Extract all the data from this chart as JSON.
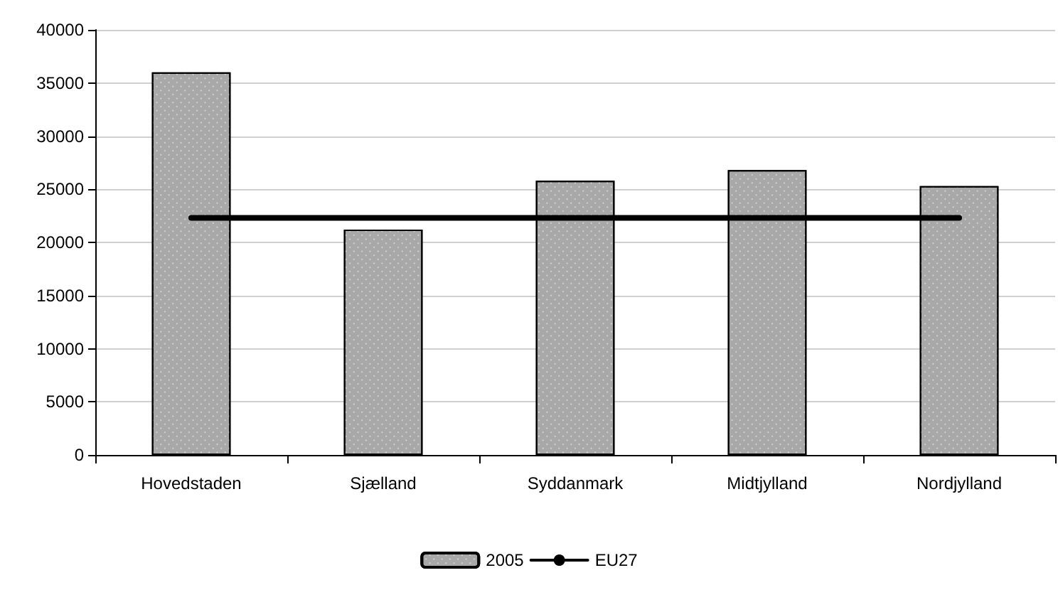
{
  "chart_data": {
    "type": "bar",
    "categories": [
      "Hovedstaden",
      "Sjælland",
      "Syddanmark",
      "Midtjylland",
      "Nordjylland"
    ],
    "series": [
      {
        "name": "2005",
        "color": "#a8a8a8",
        "values": [
          36000,
          21200,
          25800,
          26800,
          25300
        ]
      },
      {
        "name": "EU27",
        "type": "line",
        "color": "#000000",
        "values": [
          22300,
          22300,
          22300,
          22300,
          22300
        ]
      }
    ],
    "ylim": [
      0,
      40000
    ],
    "yticks": [
      0,
      5000,
      10000,
      15000,
      20000,
      25000,
      30000,
      35000,
      40000
    ],
    "grid": "y",
    "legend": "bottom",
    "marker": "none"
  }
}
